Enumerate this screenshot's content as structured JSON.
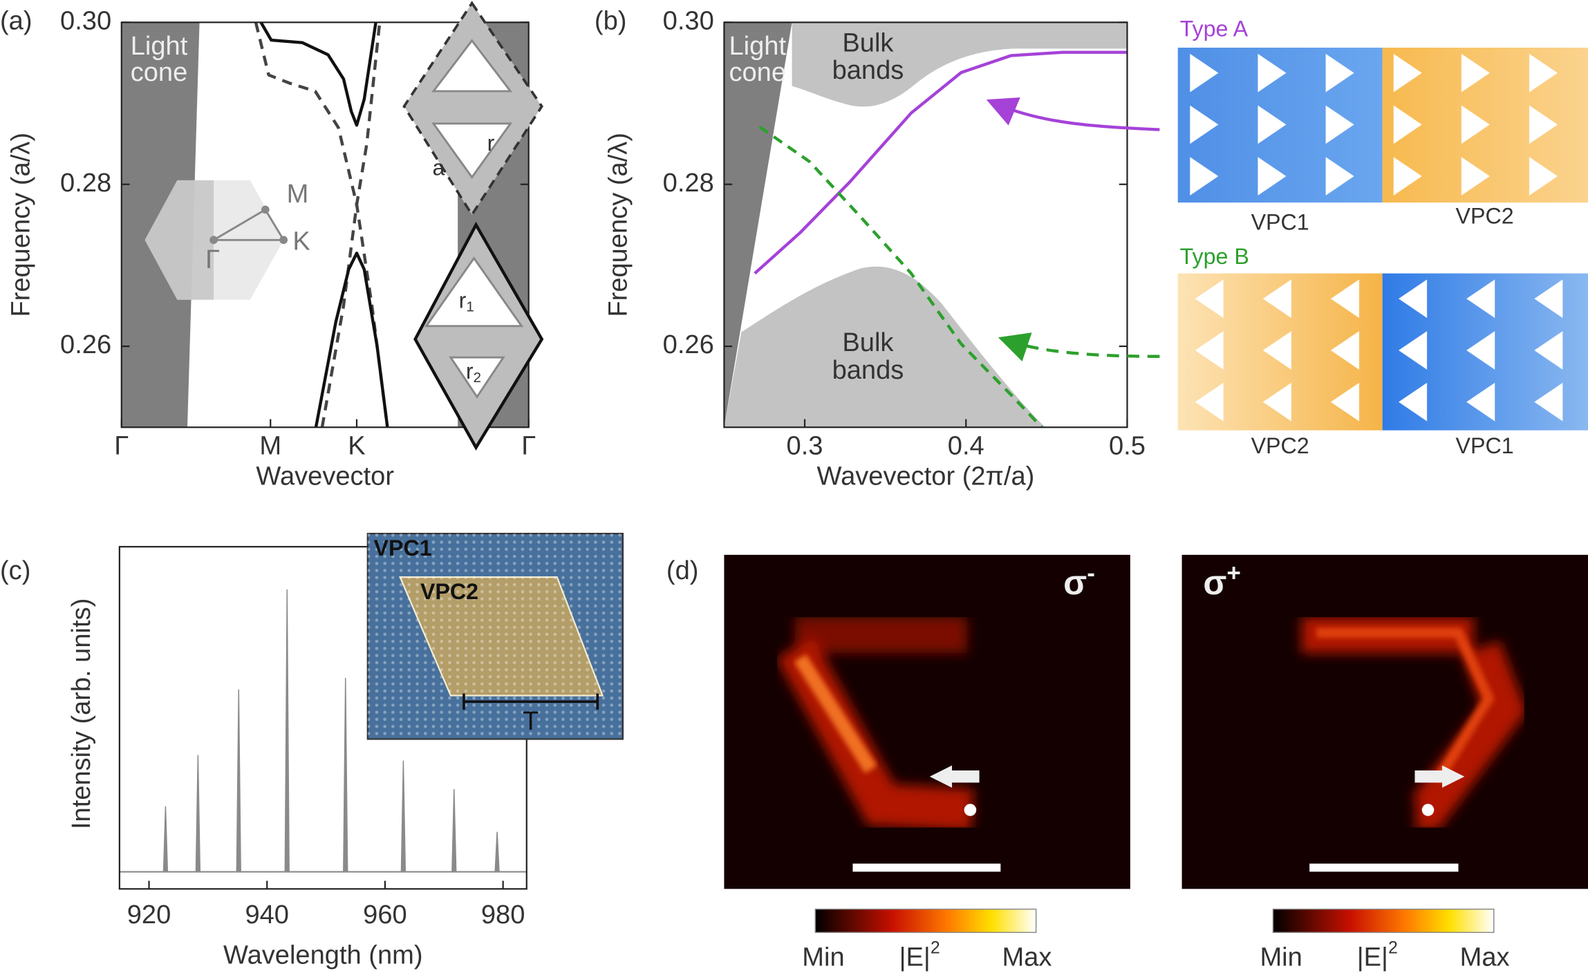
{
  "chart_data": [
    {
      "type": "line",
      "panel_label": "(a)",
      "xlabel": "Wavevector",
      "ylabel": "Frequency (a/λ)",
      "xlim": [
        0,
        1.577
      ],
      "xticks": [
        {
          "value": 0,
          "label": "Γ"
        },
        {
          "value": 0.577,
          "label": "M"
        },
        {
          "value": 0.911,
          "label": "K"
        },
        {
          "value": 1.577,
          "label": "Γ"
        }
      ],
      "ylim": [
        0.25,
        0.3
      ],
      "yticks": [
        0.26,
        0.28,
        {
          "value": 0.3,
          "label": "0.30"
        }
      ],
      "light_cone": [
        "Light",
        "cone"
      ],
      "bz_labels": {
        "gamma": "Γ",
        "m": "M",
        "k": "K"
      },
      "cell_labels": {
        "a": "a",
        "r": "r",
        "r1": [
          "r",
          "1"
        ],
        "r2": [
          "r",
          "2"
        ]
      },
      "series": [
        {
          "style": "solid",
          "color": "#111111",
          "x": [
            0.54,
            0.58,
            0.7,
            0.8,
            0.86,
            0.89,
            0.911,
            0.94,
            0.985
          ],
          "values": [
            0.3,
            0.2978,
            0.2975,
            0.296,
            0.293,
            0.289,
            0.2873,
            0.2905,
            0.3
          ]
        },
        {
          "style": "dashed",
          "color": "#444444",
          "x": [
            0.52,
            0.57,
            0.65,
            0.75,
            0.84,
            0.911,
            0.97,
            1.03
          ],
          "values": [
            0.3,
            0.2935,
            0.2925,
            0.2915,
            0.287,
            0.2775,
            0.265,
            0.25
          ]
        },
        {
          "style": "dashed",
          "color": "#444444",
          "x": [
            0.777,
            0.86,
            0.911,
            0.95,
            1.0
          ],
          "values": [
            0.25,
            0.265,
            0.2775,
            0.285,
            0.3
          ]
        },
        {
          "style": "solid",
          "color": "#111111",
          "x": [
            0.753,
            0.83,
            0.88,
            0.911,
            0.94,
            0.99,
            1.03
          ],
          "values": [
            0.25,
            0.263,
            0.2695,
            0.2715,
            0.2695,
            0.26,
            0.25
          ]
        }
      ]
    },
    {
      "type": "line",
      "panel_label": "(b)",
      "xlabel": "Wavevector (2π/a)",
      "ylabel": "Frequency (a/λ)",
      "xlim": [
        0.25,
        0.5
      ],
      "xticks": [
        0.3,
        0.4,
        0.5
      ],
      "ylim": [
        0.25,
        0.3
      ],
      "yticks": [
        0.26,
        0.28,
        {
          "value": 0.3,
          "label": "0.30"
        }
      ],
      "light_cone": [
        "Light",
        "cone"
      ],
      "bulk_bands": [
        "Bulk",
        "bands"
      ],
      "vpc_labels": [
        [
          "VPC1",
          "VPC2"
        ],
        [
          "VPC2",
          "VPC1"
        ]
      ],
      "series": [
        {
          "name": "Type A",
          "style": "solid",
          "color": "#a542d8",
          "x": [
            0.269,
            0.297,
            0.328,
            0.366,
            0.397,
            0.428,
            0.46,
            0.5
          ],
          "values": [
            0.269,
            0.274,
            0.2803,
            0.2888,
            0.2938,
            0.2959,
            0.2963,
            0.2963
          ]
        },
        {
          "name": "Type B",
          "style": "dashed",
          "color": "#2ca02c",
          "x": [
            0.272,
            0.303,
            0.335,
            0.366,
            0.397,
            0.428,
            0.447
          ],
          "values": [
            0.2871,
            0.2828,
            0.2759,
            0.269,
            0.2603,
            0.254,
            0.25
          ]
        }
      ]
    },
    {
      "type": "spectrum",
      "panel_label": "(c)",
      "xlabel": "Wavelength (nm)",
      "ylabel": "Intensity (arb. units)",
      "xlim": [
        915,
        984
      ],
      "xticks": [
        920,
        940,
        960,
        980
      ],
      "ylim": [
        -0.06,
        1.14
      ],
      "x": [
        922.8,
        928.3,
        935.2,
        943.4,
        953.3,
        963.1,
        971.7,
        979.0
      ],
      "values": [
        0.23,
        0.41,
        0.64,
        0.99,
        0.68,
        0.39,
        0.29,
        0.14
      ],
      "color": "#8a8a8a",
      "inset": {
        "outer": "VPC1",
        "inner": "VPC2",
        "length": "T"
      }
    },
    {
      "type": "image",
      "panel_label": "(d)",
      "maps": [
        {
          "symbol": "σ",
          "sup": "-"
        },
        {
          "symbol": "σ",
          "sup": "+"
        }
      ],
      "colorbar": {
        "min": "Min",
        "quantity": "|E|",
        "sup": "2",
        "max": "Max"
      }
    }
  ]
}
